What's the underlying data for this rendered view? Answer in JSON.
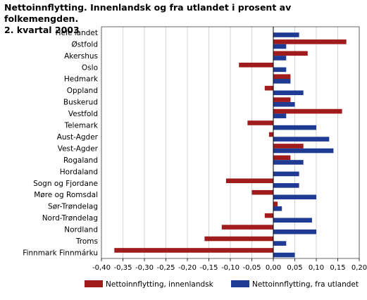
{
  "chart_data": {
    "type": "bar",
    "orientation": "horizontal",
    "title_line1": "Nettoinnflytting. Innenlandsk og fra utlandet i prosent av folkemengden.",
    "title_line2": "2. kvartal 2003",
    "categories": [
      "Hele landet",
      "Østfold",
      "Akershus",
      "Oslo",
      "Hedmark",
      "Oppland",
      "Buskerud",
      "Vestfold",
      "Telemark",
      "Aust-Agder",
      "Vest-Agder",
      "Rogaland",
      "Hordaland",
      "Sogn og Fjordane",
      "Møre og Romsdal",
      "Sør-Trøndelag",
      "Nord-Trøndelag",
      "Nordland",
      "Troms",
      "Finnmark Finnmárku"
    ],
    "series": [
      {
        "name": "Nettoinnflytting, innenlandsk",
        "color": "#a01c1c",
        "values": [
          0.0,
          0.17,
          0.08,
          -0.08,
          0.04,
          -0.02,
          0.04,
          0.16,
          -0.06,
          -0.01,
          0.07,
          0.04,
          0.0,
          -0.11,
          -0.05,
          0.01,
          -0.02,
          -0.12,
          -0.16,
          -0.37
        ]
      },
      {
        "name": "Nettoinnflytting, fra utlandet",
        "color": "#1f3a93",
        "values": [
          0.06,
          0.03,
          0.03,
          0.03,
          0.04,
          0.07,
          0.05,
          0.03,
          0.1,
          0.13,
          0.14,
          0.07,
          0.06,
          0.06,
          0.1,
          0.02,
          0.09,
          0.1,
          0.03,
          0.05
        ]
      }
    ],
    "xlim": [
      -0.4,
      0.2
    ],
    "xticks": [
      "-0,40",
      "-0,35",
      "-0,30",
      "-0,25",
      "-0,20",
      "-0,15",
      "-0,10",
      "-0,05",
      "0,00",
      "0,05",
      "0,10",
      "0,15",
      "0,20"
    ],
    "xtick_values": [
      -0.4,
      -0.35,
      -0.3,
      -0.25,
      -0.2,
      -0.15,
      -0.1,
      -0.05,
      0.0,
      0.05,
      0.1,
      0.15,
      0.2
    ],
    "grid": true,
    "legend_position": "bottom"
  }
}
